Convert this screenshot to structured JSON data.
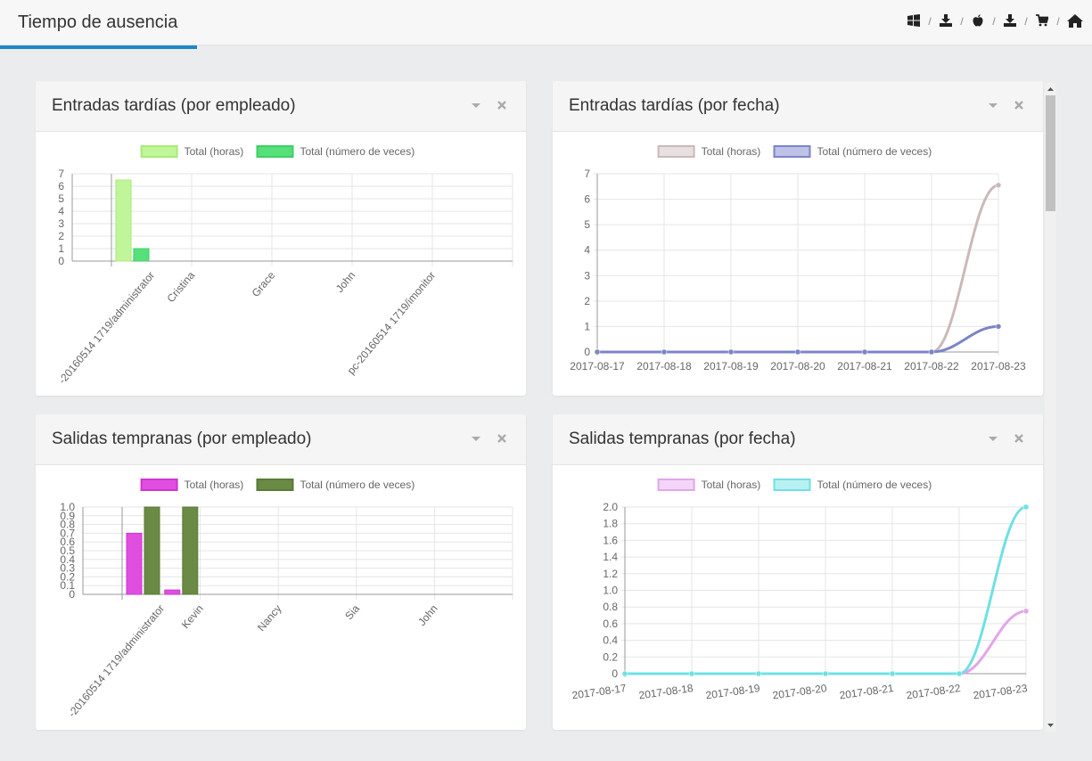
{
  "header": {
    "title": "Tiempo de ausencia"
  },
  "toolbar": {
    "icons": [
      "windows-icon",
      "download-icon",
      "apple-icon",
      "download-icon",
      "cart-icon",
      "home-icon"
    ],
    "separator": "/"
  },
  "panels": [
    {
      "title": "Entradas tardías (por empleado)",
      "chart_data": {
        "type": "bar",
        "categories": [
          "-20160514 1719/administrator",
          "Cristina",
          "Grace",
          "John",
          "pc-20160514 1719/imonitor"
        ],
        "series": [
          {
            "name": "Total (horas)",
            "color": "#c0f59a",
            "border": "#a7ec74",
            "values": [
              6.5,
              0,
              0,
              0,
              0
            ]
          },
          {
            "name": "Total (número de veces)",
            "color": "#55e07a",
            "border": "#3fcf64",
            "values": [
              1,
              0,
              0,
              0,
              0
            ]
          }
        ],
        "yticks": [
          "0",
          "1",
          "2",
          "3",
          "4",
          "5",
          "6",
          "7"
        ],
        "ylim": [
          0,
          7
        ],
        "legend": "top",
        "grid": true
      }
    },
    {
      "title": "Entradas tardías (por fecha)",
      "chart_data": {
        "type": "line",
        "x": [
          "2017-08-17",
          "2017-08-18",
          "2017-08-19",
          "2017-08-20",
          "2017-08-21",
          "2017-08-22",
          "2017-08-23"
        ],
        "series": [
          {
            "name": "Total (horas)",
            "color": "#cbb9b9",
            "fill": "#d6c6c6",
            "values": [
              0,
              0,
              0,
              0,
              0,
              0,
              6.55
            ]
          },
          {
            "name": "Total (número de veces)",
            "color": "#7c84c8",
            "fill": "#8a90d4",
            "values": [
              0,
              0,
              0,
              0,
              0,
              0,
              1
            ]
          }
        ],
        "yticks": [
          "0",
          "1",
          "2",
          "3",
          "4",
          "5",
          "6",
          "7"
        ],
        "ylim": [
          0,
          7
        ],
        "legend": "top",
        "grid": true
      }
    },
    {
      "title": "Salidas tempranas (por empleado)",
      "chart_data": {
        "type": "bar",
        "categories": [
          "-20160514 1719/administrator",
          "Kevin",
          "Nancy",
          "Sia",
          "John"
        ],
        "series": [
          {
            "name": "Total (horas)",
            "color": "#e04ee0",
            "border": "#d233d2",
            "values": [
              0.7,
              0.05,
              0,
              0,
              0
            ]
          },
          {
            "name": "Total (número de veces)",
            "color": "#6a8a45",
            "border": "#5a7a38",
            "values": [
              1.0,
              1.0,
              0,
              0,
              0
            ]
          }
        ],
        "yticks": [
          "0",
          "0.1",
          "0.2",
          "0.3",
          "0.4",
          "0.5",
          "0.6",
          "0.7",
          "0.8",
          "0.9",
          "1.0"
        ],
        "ylim": [
          0,
          1.0
        ],
        "legend": "top",
        "grid": true
      }
    },
    {
      "title": "Salidas tempranas (por fecha)",
      "chart_data": {
        "type": "line",
        "x": [
          "2017-08-17",
          "2017-08-18",
          "2017-08-19",
          "2017-08-20",
          "2017-08-21",
          "2017-08-22",
          "2017-08-23"
        ],
        "series": [
          {
            "name": "Total (horas)",
            "color": "#e3a5ec",
            "fill": "#eab5f0",
            "values": [
              0,
              0,
              0,
              0,
              0,
              0,
              0.75
            ]
          },
          {
            "name": "Total (número de veces)",
            "color": "#6fe0e4",
            "fill": "#7fe6e8",
            "values": [
              0,
              0,
              0,
              0,
              0,
              0,
              2.0
            ]
          }
        ],
        "yticks": [
          "0",
          "0.2",
          "0.4",
          "0.6",
          "0.8",
          "1.0",
          "1.2",
          "1.4",
          "1.6",
          "1.8",
          "2.0"
        ],
        "ylim": [
          0,
          2.0
        ],
        "legend": "top",
        "grid": true
      }
    }
  ]
}
